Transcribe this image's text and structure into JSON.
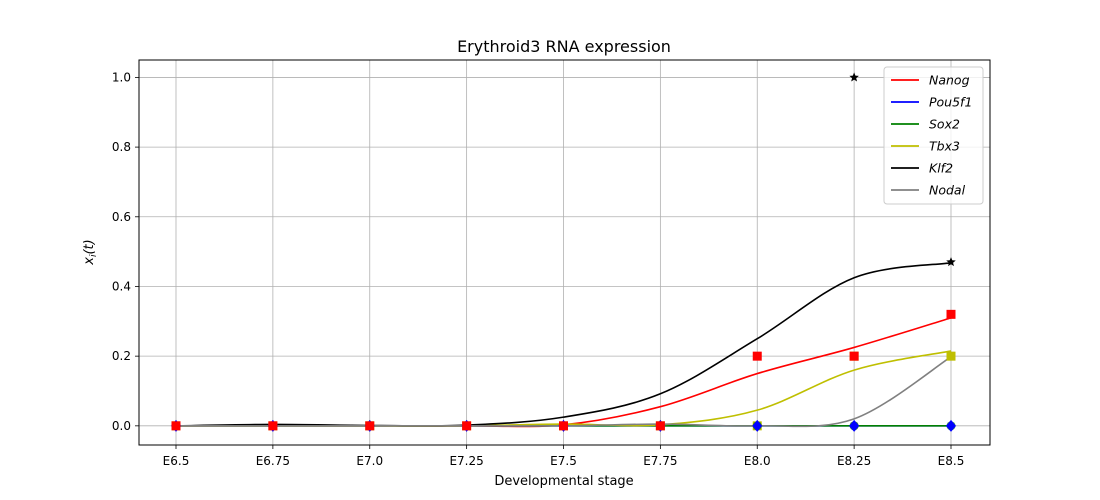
{
  "chart_data": {
    "type": "line",
    "title": "Erythroid3 RNA expression",
    "xlabel": "Developmental stage",
    "ylabel": "x_i(t)",
    "categories": [
      "E6.5",
      "E6.75",
      "E7.0",
      "E7.25",
      "E7.5",
      "E7.75",
      "E8.0",
      "E8.25",
      "E8.5"
    ],
    "yticks": [
      "0.0",
      "0.2",
      "0.4",
      "0.6",
      "0.8",
      "1.0"
    ],
    "ylim": [
      -0.055,
      1.05
    ],
    "grid": true,
    "legend_position": "top-right",
    "series": [
      {
        "name": "Nanog",
        "color": "#ff0000",
        "marker": "square",
        "observed": [
          0,
          0,
          0,
          0,
          0,
          0,
          0.2,
          0.2,
          0.32
        ],
        "curve": [
          0,
          0,
          0,
          0,
          0.003,
          0.055,
          0.15,
          0.225,
          0.31
        ]
      },
      {
        "name": "Pou5f1",
        "color": "#0000ff",
        "marker": "diamond",
        "observed": [
          0,
          0,
          0,
          0,
          0,
          0,
          0,
          0,
          0
        ],
        "curve": [
          0,
          0,
          0,
          0,
          0,
          0,
          0,
          0,
          0
        ]
      },
      {
        "name": "Sox2",
        "color": "#008000",
        "marker": "circle",
        "observed": [
          0,
          0,
          0,
          0,
          0,
          0,
          0,
          0,
          0
        ],
        "curve": [
          0,
          0,
          0,
          0,
          0,
          0,
          0,
          0,
          0
        ]
      },
      {
        "name": "Tbx3",
        "color": "#bfbf00",
        "marker": "square",
        "observed": [
          0,
          0,
          0,
          0,
          0,
          0,
          0,
          0.2,
          0.2
        ],
        "curve": [
          0,
          0,
          0,
          0,
          0.005,
          0.003,
          0.045,
          0.16,
          0.215
        ]
      },
      {
        "name": "Klf2",
        "color": "#000000",
        "marker": "star",
        "observed": [
          0,
          0,
          0,
          0,
          0,
          0,
          0,
          1.0,
          0.47
        ],
        "curve": [
          0,
          0.004,
          0.001,
          0.002,
          0.025,
          0.092,
          0.25,
          0.425,
          0.468
        ]
      },
      {
        "name": "Nodal",
        "color": "#808080",
        "marker": "circle",
        "observed": [
          0,
          0,
          0,
          0,
          0,
          0,
          0,
          0,
          0.2
        ],
        "curve": [
          0,
          0,
          0,
          0,
          0,
          0.005,
          0.0,
          0.02,
          0.198
        ]
      }
    ]
  }
}
